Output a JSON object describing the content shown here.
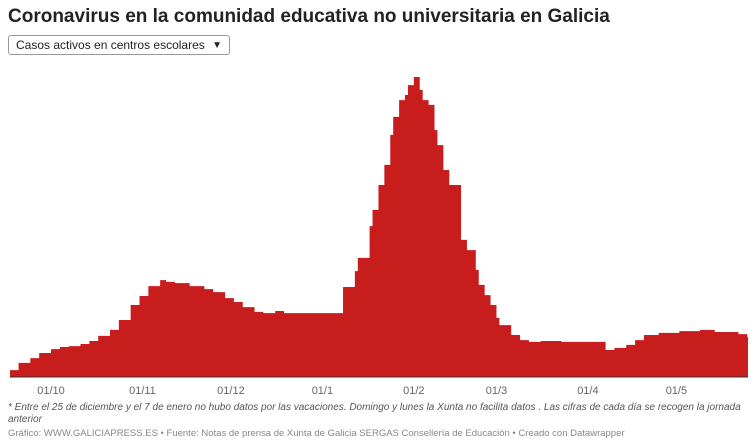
{
  "title": "Coronavirus en la comunidad educativa no universitaria en Galicia",
  "dropdown": {
    "selected": "Casos activos en centros escolares",
    "icon": "chevron-down-icon"
  },
  "note": "* Entre el 25 de diciembre y el 7 de enero no hubo datos por las vacaciones. Domingo y lunes la Xunta no facilita datos . Las cifras de cada día se recogen la jornada anterior",
  "footer": "Gráfico: WWW.GALICIAPRESS.ES • Fuente: Notas de prensa de Xunta de Galicia SERGAS Consellería de Educación • Creado con Datawrapper",
  "chart_data": {
    "type": "area",
    "step": true,
    "color": "#c71e1d",
    "title": "",
    "xlabel": "",
    "ylabel": "",
    "y_axis_labels_shown": false,
    "note_on_values": "relative scale (peak = 100), y axis not printed",
    "grid": false,
    "x_ticks": [
      "01/10",
      "01/11",
      "01/12",
      "01/1",
      "01/2",
      "01/3",
      "01/4",
      "01/5"
    ],
    "x": [
      "17/09",
      "20/09",
      "24/09",
      "27/09",
      "01/10",
      "04/10",
      "07/10",
      "11/10",
      "14/10",
      "17/10",
      "21/10",
      "24/10",
      "28/10",
      "31/10",
      "03/11",
      "07/11",
      "09/11",
      "12/11",
      "17/11",
      "22/11",
      "25/11",
      "29/11",
      "02/12",
      "05/12",
      "09/12",
      "12/12",
      "16/12",
      "19/12",
      "24/12",
      "07/01",
      "08/01",
      "12/01",
      "13/01",
      "17/01",
      "18/01",
      "20/01",
      "22/01",
      "24/01",
      "25/01",
      "27/01",
      "29/01",
      "30/01",
      "01/02",
      "03/02",
      "04/02",
      "06/02",
      "08/02",
      "09/02",
      "11/02",
      "13/02",
      "15/02",
      "16/02",
      "17/02",
      "19/02",
      "22/02",
      "23/02",
      "25/02",
      "27/02",
      "01/03",
      "02/03",
      "06/03",
      "09/03",
      "12/03",
      "16/03",
      "23/03",
      "05/04",
      "07/04",
      "10/04",
      "14/04",
      "17/04",
      "20/04",
      "25/04",
      "02/05",
      "09/05",
      "14/05",
      "22/05",
      "25/05"
    ],
    "values": [
      2.3,
      4.7,
      6.3,
      8,
      9.3,
      10,
      10.3,
      11,
      12,
      13.7,
      15.7,
      19,
      24,
      27,
      30.3,
      32.3,
      31.7,
      31.3,
      30.3,
      29.3,
      28.3,
      26.3,
      25,
      23.3,
      21.7,
      21.3,
      22,
      21.3,
      21.3,
      21.3,
      30,
      35.3,
      39.7,
      50.3,
      55.7,
      64,
      70.7,
      80.7,
      86.7,
      92.3,
      94,
      97.3,
      100,
      95.7,
      92.3,
      90.7,
      82.3,
      77.3,
      69,
      64,
      64,
      64,
      45.7,
      42.3,
      35.7,
      30.7,
      27.3,
      24,
      19.7,
      17.3,
      14,
      12.3,
      11.7,
      12,
      11.7,
      11.7,
      9,
      9.7,
      10.7,
      12.3,
      14,
      14.7,
      15.3,
      15.7,
      15,
      14.3,
      13.3
    ],
    "ylim": [
      0,
      100
    ]
  }
}
